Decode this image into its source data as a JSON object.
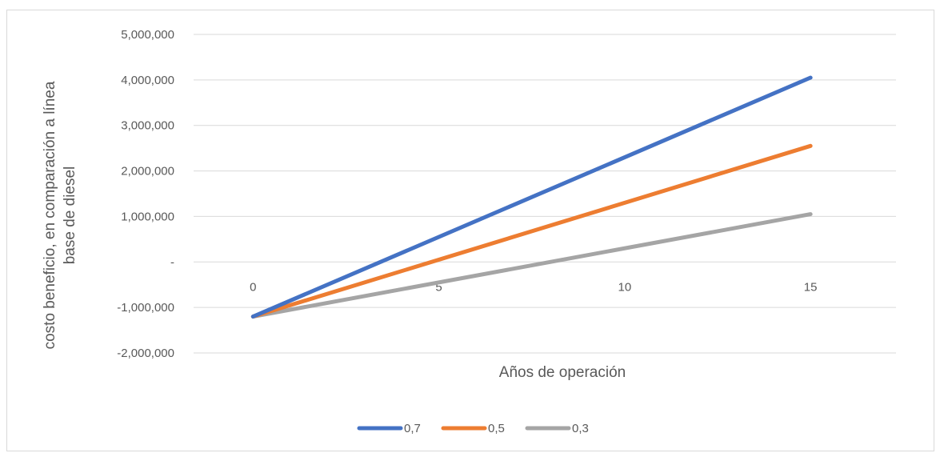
{
  "chart_data": {
    "type": "line",
    "title": "",
    "xlabel": "Años  de operación",
    "ylabel_lines": [
      "costo beneficio, en comparación a línea",
      "base de diesel"
    ],
    "x": [
      0,
      15
    ],
    "x_ticks": [
      "0",
      "5",
      "10",
      "15"
    ],
    "x_tick_values": [
      0,
      5,
      10,
      15
    ],
    "xlim": [
      -1.6,
      17.3
    ],
    "ylim": [
      -2000000,
      5000000
    ],
    "y_ticks": [
      5000000,
      4000000,
      3000000,
      2000000,
      1000000,
      0,
      -1000000,
      -2000000
    ],
    "y_tick_labels": [
      "5,000,000",
      "4,000,000",
      "3,000,000",
      "2,000,000",
      "1,000,000",
      "-",
      "-1,000,000",
      "-2,000,000"
    ],
    "grid": true,
    "legend_position": "bottom",
    "series": [
      {
        "name": "0,7",
        "color": "#4472C4",
        "values": [
          -1200000,
          4050000
        ]
      },
      {
        "name": "0,5",
        "color": "#ED7D31",
        "values": [
          -1200000,
          2550000
        ]
      },
      {
        "name": "0,3",
        "color": "#A5A5A5",
        "values": [
          -1200000,
          1050000
        ]
      }
    ]
  }
}
